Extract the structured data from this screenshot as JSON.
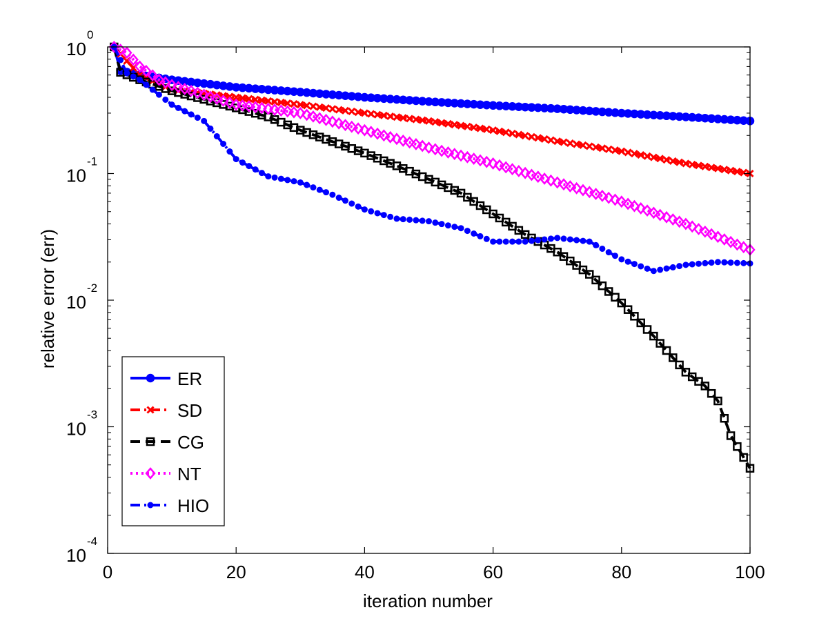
{
  "chart_data": {
    "type": "line",
    "title": "",
    "xlabel": "iteration number",
    "ylabel": "relative error (err)",
    "xlim": [
      0,
      100
    ],
    "ylim": [
      0.0001,
      1
    ],
    "yscale": "log",
    "xticks": [
      "0",
      "20",
      "40",
      "60",
      "80",
      "100"
    ],
    "yticks": [
      {
        "base": "10",
        "exp": "0"
      },
      {
        "base": "10",
        "exp": "-1"
      },
      {
        "base": "10",
        "exp": "-2"
      },
      {
        "base": "10",
        "exp": "-3"
      },
      {
        "base": "10",
        "exp": "-4"
      }
    ],
    "legend_position": "bottom-left",
    "series": [
      {
        "name": "ER",
        "color": "#0000ff",
        "dash": "solid",
        "marker": "circle",
        "anchors": [
          [
            1,
            1.0
          ],
          [
            2,
            0.65
          ],
          [
            5,
            0.6
          ],
          [
            10,
            0.55
          ],
          [
            20,
            0.48
          ],
          [
            30,
            0.44
          ],
          [
            40,
            0.4
          ],
          [
            50,
            0.37
          ],
          [
            60,
            0.345
          ],
          [
            70,
            0.325
          ],
          [
            80,
            0.3
          ],
          [
            90,
            0.28
          ],
          [
            100,
            0.26
          ]
        ]
      },
      {
        "name": "SD",
        "color": "#ff0000",
        "dash": "dashdot",
        "marker": "x",
        "anchors": [
          [
            1,
            1.0
          ],
          [
            5,
            0.6
          ],
          [
            10,
            0.46
          ],
          [
            20,
            0.4
          ],
          [
            30,
            0.35
          ],
          [
            40,
            0.3
          ],
          [
            50,
            0.26
          ],
          [
            60,
            0.22
          ],
          [
            70,
            0.18
          ],
          [
            80,
            0.15
          ],
          [
            90,
            0.12
          ],
          [
            100,
            0.1
          ]
        ]
      },
      {
        "name": "CG",
        "color": "#000000",
        "dash": "dash",
        "marker": "square",
        "anchors": [
          [
            1,
            1.0
          ],
          [
            2,
            0.63
          ],
          [
            5,
            0.55
          ],
          [
            10,
            0.45
          ],
          [
            20,
            0.33
          ],
          [
            25,
            0.28
          ],
          [
            30,
            0.22
          ],
          [
            40,
            0.145
          ],
          [
            45,
            0.115
          ],
          [
            50,
            0.09
          ],
          [
            55,
            0.07
          ],
          [
            60,
            0.048
          ],
          [
            65,
            0.033
          ],
          [
            70,
            0.024
          ],
          [
            75,
            0.016
          ],
          [
            80,
            0.0095
          ],
          [
            85,
            0.0052
          ],
          [
            90,
            0.0027
          ],
          [
            93,
            0.0021
          ],
          [
            95,
            0.0016
          ],
          [
            97,
            0.00085
          ],
          [
            100,
            0.00047
          ]
        ]
      },
      {
        "name": "NT",
        "color": "#ff00ff",
        "dash": "dotted",
        "marker": "diamond",
        "anchors": [
          [
            1,
            1.0
          ],
          [
            3,
            0.9
          ],
          [
            5,
            0.7
          ],
          [
            8,
            0.55
          ],
          [
            10,
            0.5
          ],
          [
            20,
            0.35
          ],
          [
            30,
            0.3
          ],
          [
            40,
            0.22
          ],
          [
            50,
            0.16
          ],
          [
            60,
            0.12
          ],
          [
            70,
            0.085
          ],
          [
            80,
            0.06
          ],
          [
            90,
            0.04
          ],
          [
            100,
            0.025
          ]
        ]
      },
      {
        "name": "HIO",
        "color": "#0000ff",
        "dash": "dashdot",
        "marker": "dot",
        "anchors": [
          [
            1,
            1.0
          ],
          [
            3,
            0.62
          ],
          [
            5,
            0.55
          ],
          [
            10,
            0.35
          ],
          [
            15,
            0.26
          ],
          [
            20,
            0.13
          ],
          [
            25,
            0.095
          ],
          [
            30,
            0.085
          ],
          [
            35,
            0.068
          ],
          [
            40,
            0.052
          ],
          [
            45,
            0.044
          ],
          [
            50,
            0.042
          ],
          [
            55,
            0.037
          ],
          [
            60,
            0.029
          ],
          [
            65,
            0.029
          ],
          [
            70,
            0.031
          ],
          [
            75,
            0.029
          ],
          [
            80,
            0.021
          ],
          [
            85,
            0.017
          ],
          [
            90,
            0.019
          ],
          [
            95,
            0.02
          ],
          [
            100,
            0.0195
          ]
        ]
      }
    ]
  }
}
